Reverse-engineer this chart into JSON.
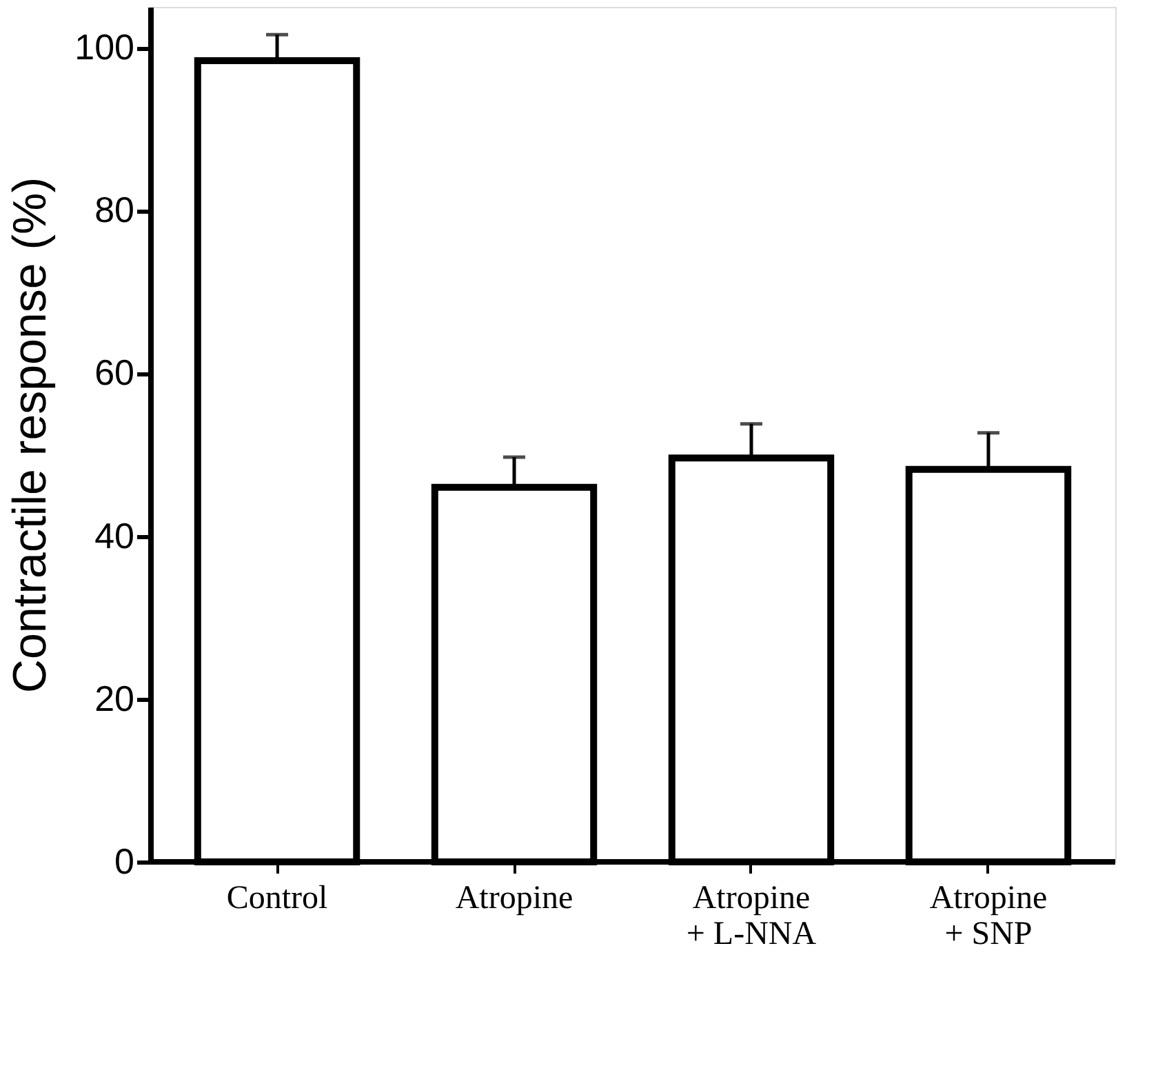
{
  "chart_data": {
    "type": "bar",
    "ylabel": "Contractile response (%)",
    "categories": [
      "Control",
      "Atropine",
      "Atropine\n+ L-NNA",
      "Atropine\n+ SNP"
    ],
    "values": [
      98.4,
      46.0,
      49.6,
      48.2
    ],
    "errors": [
      3.2,
      3.7,
      4.2,
      4.5
    ],
    "color": "#ffffff",
    "ylim": [
      0,
      105
    ],
    "yticks": [
      0,
      20,
      40,
      60,
      80,
      100
    ],
    "grid": false
  }
}
